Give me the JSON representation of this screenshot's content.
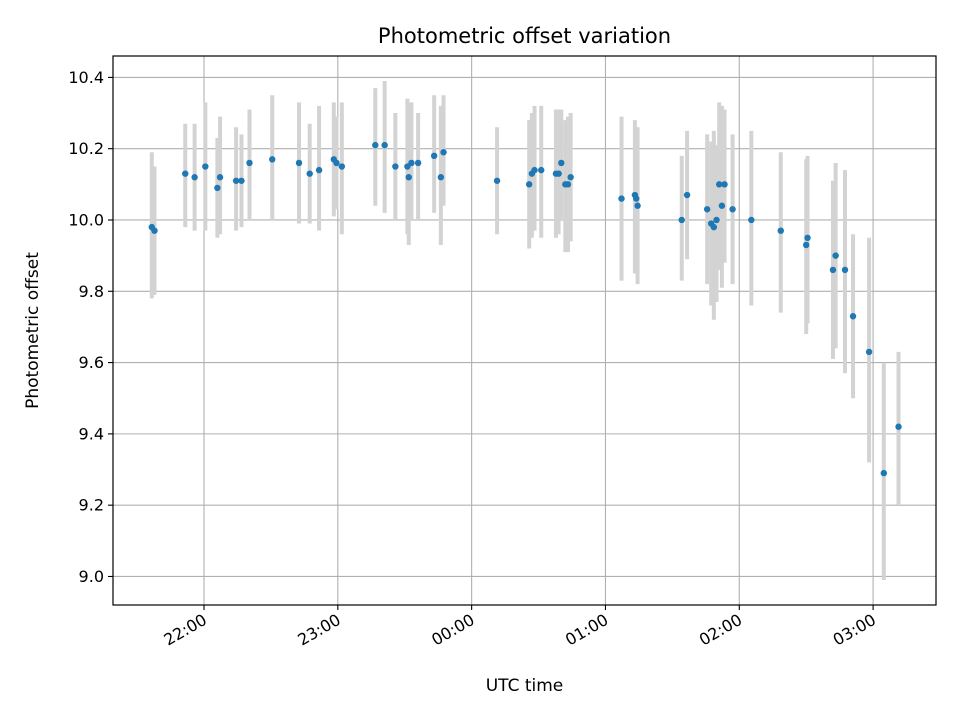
{
  "chart_data": {
    "type": "scatter",
    "title": "Photometric offset variation",
    "xlabel": "UTC time",
    "ylabel": "Photometric offset",
    "x_unit": "UTC time (hours after midnight; 22:00 = -2.0)",
    "xlim": [
      -2.68,
      3.47
    ],
    "ylim": [
      8.92,
      10.46
    ],
    "grid": true,
    "x_ticks": [
      {
        "value": -2,
        "label": "22:00"
      },
      {
        "value": -1,
        "label": "23:00"
      },
      {
        "value": 0,
        "label": "00:00"
      },
      {
        "value": 1,
        "label": "01:00"
      },
      {
        "value": 2,
        "label": "02:00"
      },
      {
        "value": 3,
        "label": "03:00"
      }
    ],
    "y_ticks": [
      {
        "value": 9.0,
        "label": "9.0"
      },
      {
        "value": 9.2,
        "label": "9.2"
      },
      {
        "value": 9.4,
        "label": "9.4"
      },
      {
        "value": 9.6,
        "label": "9.6"
      },
      {
        "value": 9.8,
        "label": "9.8"
      },
      {
        "value": 10.0,
        "label": "10.0"
      },
      {
        "value": 10.2,
        "label": "10.2"
      },
      {
        "value": 10.4,
        "label": "10.4"
      }
    ],
    "colors": {
      "point": "#1f77b4",
      "errorbar": "#d3d3d3",
      "grid": "#b0b0b0"
    },
    "points": [
      {
        "x": -2.39,
        "y": 9.98,
        "lo": 9.78,
        "hi": 10.19
      },
      {
        "x": -2.37,
        "y": 9.97,
        "lo": 9.79,
        "hi": 10.15
      },
      {
        "x": -2.14,
        "y": 10.13,
        "lo": 9.98,
        "hi": 10.27
      },
      {
        "x": -2.07,
        "y": 10.12,
        "lo": 9.97,
        "hi": 10.27
      },
      {
        "x": -1.99,
        "y": 10.15,
        "lo": 9.97,
        "hi": 10.33
      },
      {
        "x": -1.9,
        "y": 10.09,
        "lo": 9.95,
        "hi": 10.23
      },
      {
        "x": -1.88,
        "y": 10.12,
        "lo": 9.96,
        "hi": 10.29
      },
      {
        "x": -1.76,
        "y": 10.11,
        "lo": 9.97,
        "hi": 10.26
      },
      {
        "x": -1.72,
        "y": 10.11,
        "lo": 9.98,
        "hi": 10.24
      },
      {
        "x": -1.66,
        "y": 10.16,
        "lo": 10.0,
        "hi": 10.31
      },
      {
        "x": -1.49,
        "y": 10.17,
        "lo": 10.0,
        "hi": 10.35
      },
      {
        "x": -1.29,
        "y": 10.16,
        "lo": 9.99,
        "hi": 10.33
      },
      {
        "x": -1.21,
        "y": 10.13,
        "lo": 9.99,
        "hi": 10.27
      },
      {
        "x": -1.14,
        "y": 10.14,
        "lo": 9.97,
        "hi": 10.32
      },
      {
        "x": -1.03,
        "y": 10.17,
        "lo": 10.01,
        "hi": 10.33
      },
      {
        "x": -1.01,
        "y": 10.16,
        "lo": 10.03,
        "hi": 10.29
      },
      {
        "x": -0.97,
        "y": 10.15,
        "lo": 9.96,
        "hi": 10.33
      },
      {
        "x": -0.72,
        "y": 10.21,
        "lo": 10.04,
        "hi": 10.37
      },
      {
        "x": -0.65,
        "y": 10.21,
        "lo": 10.02,
        "hi": 10.39
      },
      {
        "x": -0.57,
        "y": 10.15,
        "lo": 10.0,
        "hi": 10.3
      },
      {
        "x": -0.48,
        "y": 10.15,
        "lo": 9.96,
        "hi": 10.34
      },
      {
        "x": -0.47,
        "y": 10.12,
        "lo": 9.93,
        "hi": 10.33
      },
      {
        "x": -0.45,
        "y": 10.16,
        "lo": 10.0,
        "hi": 10.33
      },
      {
        "x": -0.4,
        "y": 10.16,
        "lo": 10.0,
        "hi": 10.3
      },
      {
        "x": -0.28,
        "y": 10.18,
        "lo": 10.02,
        "hi": 10.35
      },
      {
        "x": -0.23,
        "y": 10.12,
        "lo": 9.93,
        "hi": 10.32
      },
      {
        "x": -0.21,
        "y": 10.19,
        "lo": 10.04,
        "hi": 10.35
      },
      {
        "x": 0.19,
        "y": 10.11,
        "lo": 9.96,
        "hi": 10.26
      },
      {
        "x": 0.43,
        "y": 10.1,
        "lo": 9.92,
        "hi": 10.28
      },
      {
        "x": 0.45,
        "y": 10.13,
        "lo": 9.95,
        "hi": 10.3
      },
      {
        "x": 0.47,
        "y": 10.14,
        "lo": 9.97,
        "hi": 10.32
      },
      {
        "x": 0.52,
        "y": 10.14,
        "lo": 9.95,
        "hi": 10.32
      },
      {
        "x": 0.63,
        "y": 10.13,
        "lo": 9.95,
        "hi": 10.31
      },
      {
        "x": 0.65,
        "y": 10.13,
        "lo": 9.96,
        "hi": 10.31
      },
      {
        "x": 0.67,
        "y": 10.16,
        "lo": 10.0,
        "hi": 10.31
      },
      {
        "x": 0.7,
        "y": 10.1,
        "lo": 9.91,
        "hi": 10.28
      },
      {
        "x": 0.72,
        "y": 10.1,
        "lo": 9.91,
        "hi": 10.29
      },
      {
        "x": 0.74,
        "y": 10.12,
        "lo": 9.94,
        "hi": 10.3
      },
      {
        "x": 1.12,
        "y": 10.06,
        "lo": 9.83,
        "hi": 10.29
      },
      {
        "x": 1.22,
        "y": 10.07,
        "lo": 9.85,
        "hi": 10.28
      },
      {
        "x": 1.23,
        "y": 10.06,
        "lo": 9.88,
        "hi": 10.24
      },
      {
        "x": 1.24,
        "y": 10.04,
        "lo": 9.82,
        "hi": 10.26
      },
      {
        "x": 1.57,
        "y": 10.0,
        "lo": 9.83,
        "hi": 10.18
      },
      {
        "x": 1.61,
        "y": 10.07,
        "lo": 9.89,
        "hi": 10.25
      },
      {
        "x": 1.76,
        "y": 10.03,
        "lo": 9.82,
        "hi": 10.24
      },
      {
        "x": 1.79,
        "y": 9.99,
        "lo": 9.76,
        "hi": 10.22
      },
      {
        "x": 1.81,
        "y": 9.98,
        "lo": 9.72,
        "hi": 10.25
      },
      {
        "x": 1.83,
        "y": 10.0,
        "lo": 9.77,
        "hi": 10.21
      },
      {
        "x": 1.85,
        "y": 10.1,
        "lo": 9.86,
        "hi": 10.33
      },
      {
        "x": 1.87,
        "y": 10.04,
        "lo": 9.81,
        "hi": 10.32
      },
      {
        "x": 1.89,
        "y": 10.1,
        "lo": 9.88,
        "hi": 10.31
      },
      {
        "x": 1.95,
        "y": 10.03,
        "lo": 9.82,
        "hi": 10.24
      },
      {
        "x": 2.09,
        "y": 10.0,
        "lo": 9.76,
        "hi": 10.25
      },
      {
        "x": 2.31,
        "y": 9.97,
        "lo": 9.74,
        "hi": 10.19
      },
      {
        "x": 2.5,
        "y": 9.93,
        "lo": 9.68,
        "hi": 10.17
      },
      {
        "x": 2.51,
        "y": 9.95,
        "lo": 9.71,
        "hi": 10.18
      },
      {
        "x": 2.7,
        "y": 9.86,
        "lo": 9.61,
        "hi": 10.11
      },
      {
        "x": 2.72,
        "y": 9.9,
        "lo": 9.64,
        "hi": 10.16
      },
      {
        "x": 2.79,
        "y": 9.86,
        "lo": 9.57,
        "hi": 10.14
      },
      {
        "x": 2.85,
        "y": 9.73,
        "lo": 9.5,
        "hi": 9.96
      },
      {
        "x": 2.97,
        "y": 9.63,
        "lo": 9.32,
        "hi": 9.95
      },
      {
        "x": 3.08,
        "y": 9.29,
        "lo": 8.99,
        "hi": 9.6
      },
      {
        "x": 3.19,
        "y": 9.42,
        "lo": 9.2,
        "hi": 9.63
      }
    ]
  }
}
